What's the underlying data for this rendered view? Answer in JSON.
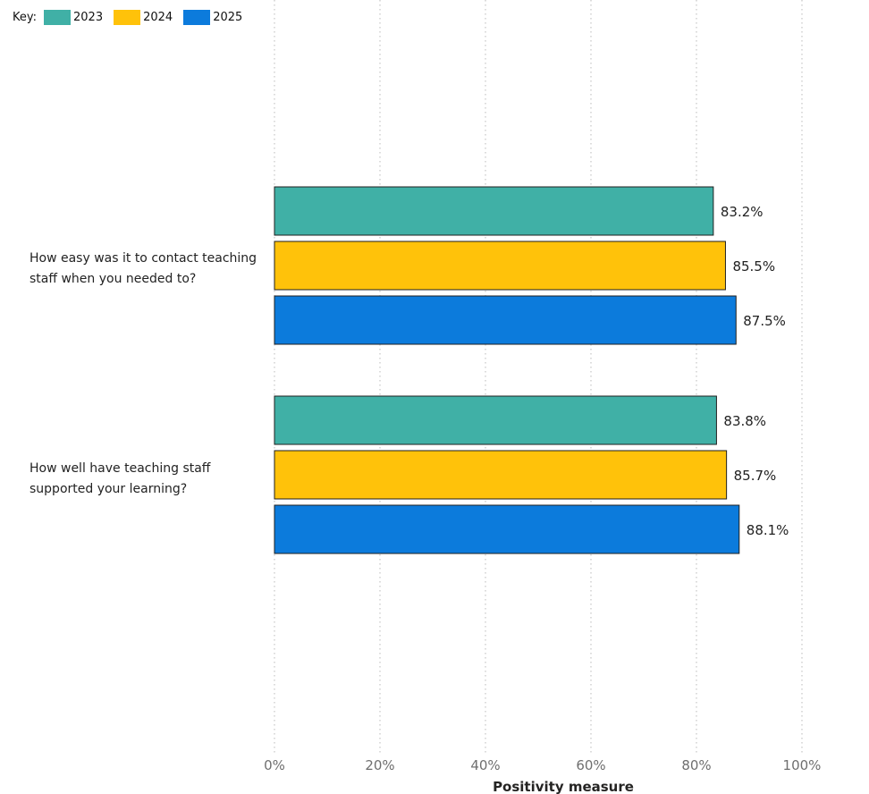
{
  "legend": {
    "key_label": "Key:",
    "items": [
      {
        "name": "2023",
        "color": "#40B0A6"
      },
      {
        "name": "2024",
        "color": "#FFC20A"
      },
      {
        "name": "2025",
        "color": "#0C7BDC"
      }
    ]
  },
  "chart_data": {
    "type": "bar",
    "orientation": "horizontal",
    "categories": [
      "How easy was it to contact teaching staff when you needed to?",
      "How well have teaching staff supported your learning?"
    ],
    "series": [
      {
        "name": "2023",
        "color": "#40B0A6",
        "values": [
          83.2,
          83.8
        ],
        "labels": [
          "83.2%",
          "83.8%"
        ]
      },
      {
        "name": "2024",
        "color": "#FFC20A",
        "values": [
          85.5,
          85.7
        ],
        "labels": [
          "85.5%",
          "85.7%"
        ]
      },
      {
        "name": "2025",
        "color": "#0C7BDC",
        "values": [
          87.5,
          88.1
        ],
        "labels": [
          "87.5%",
          "88.1%"
        ]
      }
    ],
    "xlabel": "Positivity measure",
    "xlim": [
      0,
      100
    ],
    "xticks": [
      0,
      20,
      40,
      60,
      80,
      100
    ],
    "xtick_labels": [
      "0%",
      "20%",
      "40%",
      "60%",
      "80%",
      "100%"
    ],
    "grid": "vertical-dotted",
    "legend_position": "top-left"
  }
}
